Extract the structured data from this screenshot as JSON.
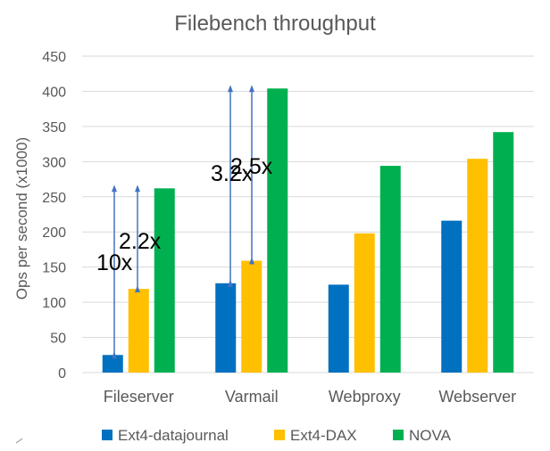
{
  "chart_data": {
    "type": "bar",
    "title": "Filebench throughput",
    "ylabel": "Ops per second (x1000)",
    "xlabel": "",
    "ylim": [
      0,
      450
    ],
    "yticks": [
      0,
      50,
      100,
      150,
      200,
      250,
      300,
      350,
      400,
      450
    ],
    "grid": true,
    "legend_position": "bottom",
    "categories": [
      "Fileserver",
      "Varmail",
      "Webproxy",
      "Webserver"
    ],
    "series": [
      {
        "name": "Ext4-datajournal",
        "color": "#0070C0",
        "values": [
          25,
          127,
          125,
          216
        ]
      },
      {
        "name": "Ext4-DAX",
        "color": "#FFC000",
        "values": [
          119,
          159,
          198,
          304
        ]
      },
      {
        "name": "NOVA",
        "color": "#00B050",
        "values": [
          262,
          404,
          294,
          342
        ]
      }
    ],
    "annotations": [
      {
        "text": "10x",
        "category": "Fileserver",
        "arrow_from": 25,
        "arrow_to": 262
      },
      {
        "text": "2.2x",
        "category": "Fileserver",
        "arrow_from": 119,
        "arrow_to": 262
      },
      {
        "text": "3.2x",
        "category": "Varmail",
        "arrow_from": 127,
        "arrow_to": 404
      },
      {
        "text": "2.5x",
        "category": "Varmail",
        "arrow_from": 159,
        "arrow_to": 404
      }
    ]
  }
}
